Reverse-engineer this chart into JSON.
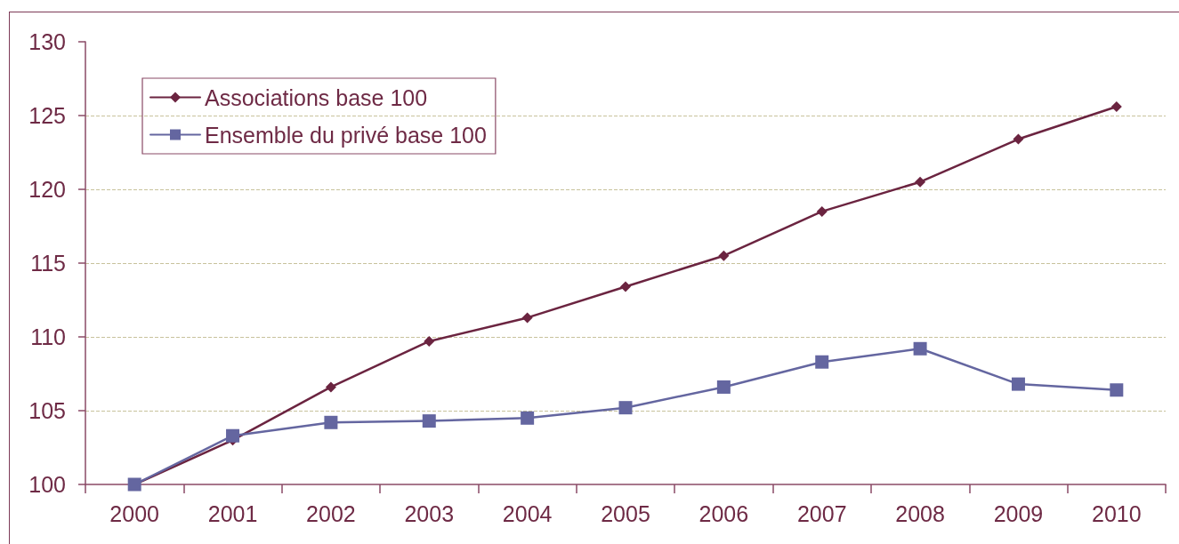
{
  "chart_data": {
    "type": "line",
    "categories": [
      "2000",
      "2001",
      "2002",
      "2003",
      "2004",
      "2005",
      "2006",
      "2007",
      "2008",
      "2009",
      "2010"
    ],
    "series": [
      {
        "name": "Associations base 100",
        "color": "#6b2440",
        "marker": "diamond",
        "values": [
          100,
          103.0,
          106.6,
          109.7,
          111.3,
          113.4,
          115.5,
          118.5,
          120.5,
          123.4,
          125.6
        ]
      },
      {
        "name": "Ensemble du privé base 100",
        "color": "#6466a0",
        "marker": "square",
        "values": [
          100,
          103.3,
          104.2,
          104.3,
          104.5,
          105.2,
          106.6,
          108.3,
          109.2,
          106.8,
          106.4
        ]
      }
    ],
    "ylim": [
      100,
      130
    ],
    "yticks": [
      100,
      105,
      110,
      115,
      120,
      125,
      130
    ],
    "grid": "y",
    "legend": "top left"
  }
}
